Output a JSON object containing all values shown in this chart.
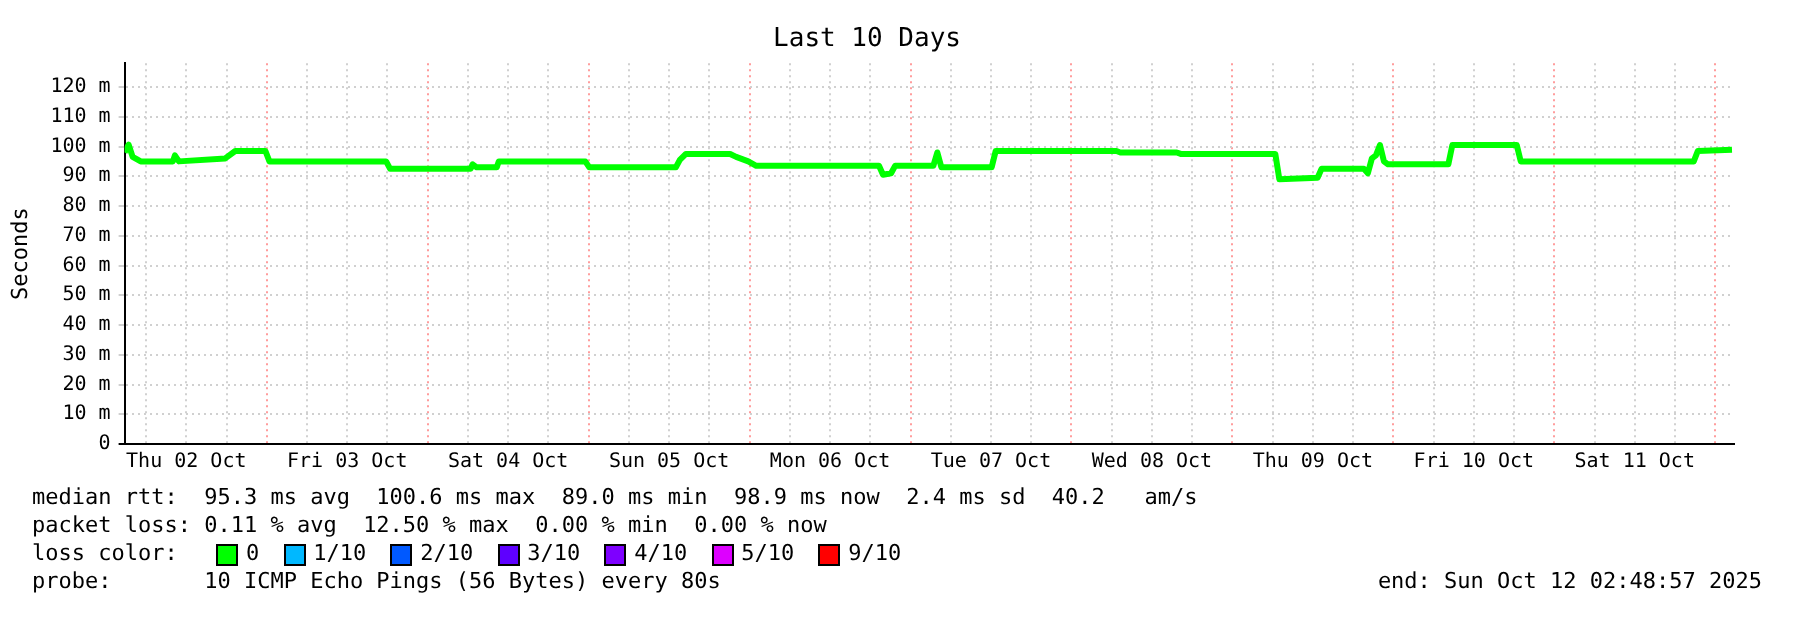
{
  "chart_data": {
    "type": "line",
    "title": "Last 10 Days",
    "ylabel": "Seconds",
    "x": [
      "2025-10-02T02:48",
      "2025-10-02T03:24",
      "2025-10-02T04:00",
      "2025-10-02T05:12",
      "2025-10-02T10:00",
      "2025-10-02T10:18",
      "2025-10-02T10:54",
      "2025-10-02T17:48",
      "2025-10-02T19:18",
      "2025-10-02T23:48",
      "2025-10-03T00:24",
      "2025-10-03T17:48",
      "2025-10-03T18:24",
      "2025-10-04T06:24",
      "2025-10-04T06:42",
      "2025-10-04T07:18",
      "2025-10-04T10:18",
      "2025-10-04T10:36",
      "2025-10-04T23:30",
      "2025-10-05T00:06",
      "2025-10-05T13:00",
      "2025-10-05T13:36",
      "2025-10-05T14:30",
      "2025-10-05T21:06",
      "2025-10-05T22:00",
      "2025-10-05T23:48",
      "2025-10-06T01:00",
      "2025-10-06T19:18",
      "2025-10-06T19:54",
      "2025-10-06T21:06",
      "2025-10-06T21:42",
      "2025-10-07T03:24",
      "2025-10-07T04:00",
      "2025-10-07T04:36",
      "2025-10-07T12:06",
      "2025-10-07T12:42",
      "2025-10-08T06:42",
      "2025-10-08T07:18",
      "2025-10-08T15:42",
      "2025-10-08T16:18",
      "2025-10-09T06:24",
      "2025-10-09T07:00",
      "2025-10-09T12:42",
      "2025-10-09T13:18",
      "2025-10-09T19:36",
      "2025-10-09T20:12",
      "2025-10-09T20:48",
      "2025-10-09T21:24",
      "2025-10-09T22:00",
      "2025-10-09T22:36",
      "2025-10-09T23:12",
      "2025-10-10T08:12",
      "2025-10-10T08:48",
      "2025-10-10T18:24",
      "2025-10-10T19:00",
      "2025-10-11T20:48",
      "2025-10-11T21:24",
      "2025-10-12T02:30"
    ],
    "series": [
      {
        "color": "#00ff00",
        "values": [
          98,
          100.6,
          96.5,
          95,
          95,
          97,
          95,
          96,
          98.5,
          98.5,
          95,
          95,
          92.5,
          92.5,
          94,
          93,
          93,
          95,
          95,
          93,
          93,
          95.5,
          97.5,
          97.5,
          96.5,
          95,
          93.5,
          93.5,
          90.5,
          91,
          93.5,
          93.5,
          98,
          93,
          93,
          98.5,
          98.5,
          98,
          98,
          97.5,
          97.5,
          89,
          89.5,
          92.5,
          92.5,
          91,
          96,
          97,
          100.5,
          95,
          94,
          94,
          100.5,
          100.5,
          95,
          95,
          98.5,
          98.9
        ]
      }
    ],
    "xlim": [
      "2025-10-02T02:48",
      "2025-10-12T02:48"
    ],
    "xticks": [
      {
        "value": "2025-10-02T06:00",
        "label": null
      },
      {
        "value": "2025-10-02T12:00",
        "label": "Thu 02 Oct"
      },
      {
        "value": "2025-10-02T18:00",
        "label": null
      },
      {
        "value": "2025-10-03T00:00",
        "label": null
      },
      {
        "value": "2025-10-03T06:00",
        "label": null
      },
      {
        "value": "2025-10-03T12:00",
        "label": "Fri 03 Oct"
      },
      {
        "value": "2025-10-03T18:00",
        "label": null
      },
      {
        "value": "2025-10-04T00:00",
        "label": null
      },
      {
        "value": "2025-10-04T06:00",
        "label": null
      },
      {
        "value": "2025-10-04T12:00",
        "label": "Sat 04 Oct"
      },
      {
        "value": "2025-10-04T18:00",
        "label": null
      },
      {
        "value": "2025-10-05T00:00",
        "label": null
      },
      {
        "value": "2025-10-05T06:00",
        "label": null
      },
      {
        "value": "2025-10-05T12:00",
        "label": "Sun 05 Oct"
      },
      {
        "value": "2025-10-05T18:00",
        "label": null
      },
      {
        "value": "2025-10-06T00:00",
        "label": null
      },
      {
        "value": "2025-10-06T06:00",
        "label": null
      },
      {
        "value": "2025-10-06T12:00",
        "label": "Mon 06 Oct"
      },
      {
        "value": "2025-10-06T18:00",
        "label": null
      },
      {
        "value": "2025-10-07T00:00",
        "label": null
      },
      {
        "value": "2025-10-07T06:00",
        "label": null
      },
      {
        "value": "2025-10-07T12:00",
        "label": "Tue 07 Oct"
      },
      {
        "value": "2025-10-07T18:00",
        "label": null
      },
      {
        "value": "2025-10-08T00:00",
        "label": null
      },
      {
        "value": "2025-10-08T06:00",
        "label": null
      },
      {
        "value": "2025-10-08T12:00",
        "label": "Wed 08 Oct"
      },
      {
        "value": "2025-10-08T18:00",
        "label": null
      },
      {
        "value": "2025-10-09T00:00",
        "label": null
      },
      {
        "value": "2025-10-09T06:00",
        "label": null
      },
      {
        "value": "2025-10-09T12:00",
        "label": "Thu 09 Oct"
      },
      {
        "value": "2025-10-09T18:00",
        "label": null
      },
      {
        "value": "2025-10-10T00:00",
        "label": null
      },
      {
        "value": "2025-10-10T06:00",
        "label": null
      },
      {
        "value": "2025-10-10T12:00",
        "label": "Fri 10 Oct"
      },
      {
        "value": "2025-10-10T18:00",
        "label": null
      },
      {
        "value": "2025-10-11T00:00",
        "label": null
      },
      {
        "value": "2025-10-11T06:00",
        "label": null
      },
      {
        "value": "2025-10-11T12:00",
        "label": "Sat 11 Oct"
      },
      {
        "value": "2025-10-11T18:00",
        "label": null
      },
      {
        "value": "2025-10-12T00:00",
        "label": null
      }
    ],
    "ylim": [
      0,
      128
    ],
    "yticks": [
      0,
      {
        "value": 10,
        "label": "10 m"
      },
      {
        "value": 20,
        "label": "20 m"
      },
      {
        "value": 30,
        "label": "30 m"
      },
      {
        "value": 40,
        "label": "40 m"
      },
      {
        "value": 50,
        "label": "50 m"
      },
      {
        "value": 60,
        "label": "60 m"
      },
      {
        "value": 70,
        "label": "70 m"
      },
      {
        "value": 80,
        "label": "80 m"
      },
      {
        "value": 90,
        "label": "90 m"
      },
      {
        "value": 100,
        "label": "100 m"
      },
      {
        "value": 110,
        "label": "110 m"
      },
      {
        "value": 120,
        "label": "120 m"
      }
    ],
    "grid": true,
    "legend": false,
    "marker": "none",
    "line_style": "solid",
    "annotations": [
      "median rtt:  95.3 ms avg  100.6 ms max  89.0 ms min  98.9 ms now  2.4 ms sd  40.2   am/s",
      "packet loss: 0.11 % avg  12.50 % max  0.00 % min  0.00 % now",
      "loss color:",
      "0",
      "1/10",
      "2/10",
      "3/10",
      "4/10",
      "5/10",
      "9/10",
      "probe:       10 ICMP Echo Pings (56 Bytes) every 80s",
      "end: Sun Oct 12 02:48:57 2025"
    ]
  }
}
